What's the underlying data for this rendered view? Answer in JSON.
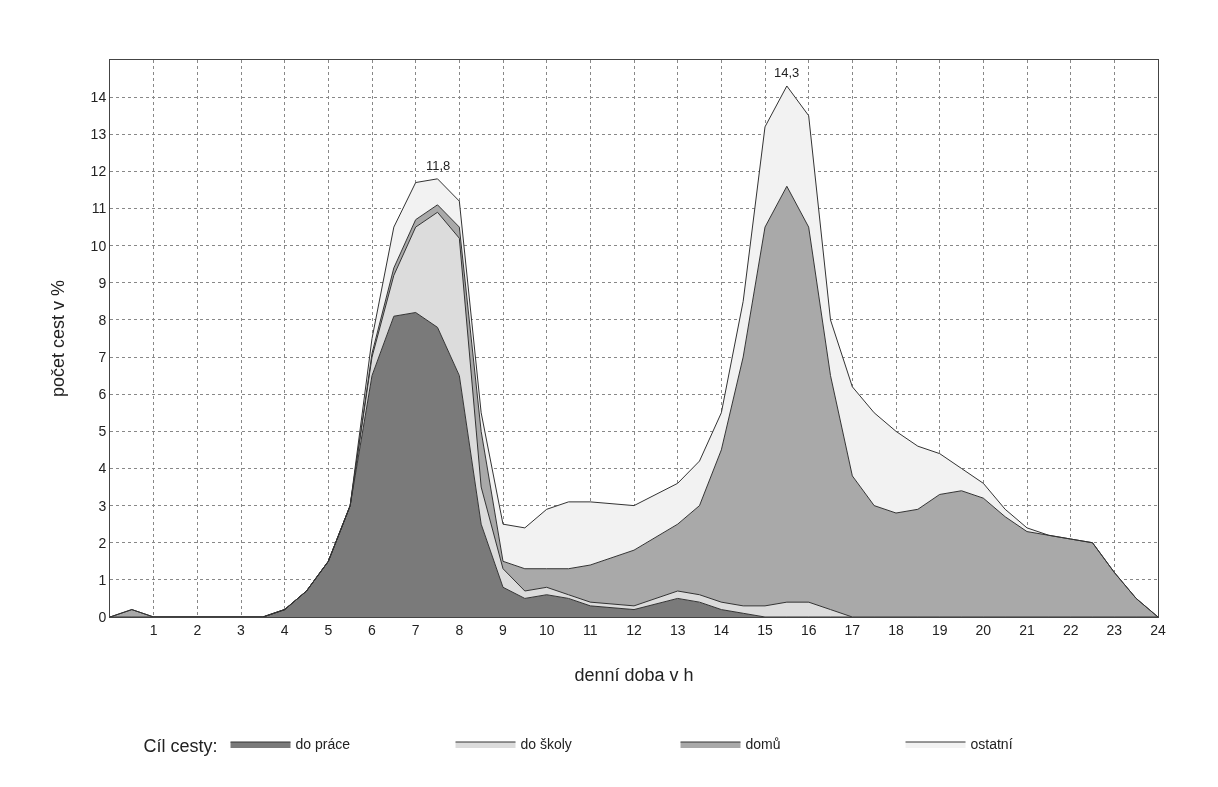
{
  "chart_data": {
    "type": "area",
    "stacked": true,
    "xlabel": "denní doba v h",
    "ylabel": "počet cest v %",
    "legend_title": "Cíl cesty:",
    "x": [
      0,
      0.5,
      1,
      3.5,
      4,
      4.5,
      5,
      5.5,
      6,
      6.5,
      7,
      7.5,
      8,
      8.5,
      9,
      9.5,
      10,
      10.5,
      11,
      12,
      13,
      13.5,
      14,
      14.5,
      15,
      15.5,
      16,
      16.5,
      17,
      17.5,
      18,
      18.5,
      19,
      19.5,
      20,
      20.5,
      21,
      21.5,
      22,
      22.5,
      23,
      23.5,
      24
    ],
    "series": [
      {
        "name": "do práce",
        "color": "#7a7a7a",
        "values": [
          0,
          0,
          0,
          0,
          0.2,
          0.7,
          1.5,
          3.0,
          6.5,
          8.1,
          8.2,
          7.8,
          6.5,
          2.5,
          0.8,
          0.5,
          0.6,
          0.5,
          0.3,
          0.2,
          0.5,
          0.4,
          0.2,
          0.1,
          0,
          0,
          0,
          0,
          0,
          0,
          0,
          0,
          0,
          0,
          0,
          0,
          0,
          0,
          0,
          0,
          0,
          0,
          0
        ]
      },
      {
        "name": "do školy",
        "color": "#dcdcdc",
        "values": [
          0,
          0,
          0,
          0,
          0,
          0,
          0,
          0,
          0.5,
          1.1,
          2.3,
          3.1,
          3.7,
          1.0,
          0.5,
          0.2,
          0.2,
          0.1,
          0.1,
          0.1,
          0.2,
          0.2,
          0.2,
          0.2,
          0.3,
          0.4,
          0.4,
          0.2,
          0,
          0,
          0,
          0,
          0,
          0,
          0,
          0,
          0,
          0,
          0,
          0,
          0,
          0,
          0
        ]
      },
      {
        "name": "domů",
        "color": "#a9a9a9",
        "values": [
          0,
          0.2,
          0,
          0,
          0,
          0,
          0,
          0,
          0.1,
          0.2,
          0.2,
          0.2,
          0.3,
          1.5,
          0.2,
          0.6,
          0.5,
          0.7,
          1.0,
          1.5,
          1.8,
          2.4,
          4.1,
          6.7,
          10.2,
          11.2,
          10.1,
          6.3,
          3.8,
          3.0,
          2.8,
          2.9,
          3.3,
          3.4,
          3.2,
          2.7,
          2.3,
          2.2,
          2.1,
          2.0,
          1.2,
          0.5,
          0
        ]
      },
      {
        "name": "ostatní",
        "color": "#f2f2f2",
        "values": [
          0,
          0,
          0,
          0,
          0,
          0,
          0,
          0,
          0.4,
          1.1,
          1.0,
          0.7,
          0.7,
          0.5,
          1.0,
          1.1,
          1.6,
          1.8,
          1.7,
          1.2,
          1.1,
          1.2,
          1.0,
          1.5,
          2.7,
          2.7,
          3.0,
          1.5,
          2.4,
          2.5,
          2.2,
          1.7,
          1.1,
          0.6,
          0.4,
          0.2,
          0.1,
          0,
          0,
          0,
          0,
          0,
          0
        ]
      }
    ],
    "xlim": [
      0,
      24
    ],
    "xticks": [
      1,
      2,
      3,
      4,
      5,
      6,
      7,
      8,
      9,
      10,
      11,
      12,
      13,
      14,
      15,
      16,
      17,
      18,
      19,
      20,
      21,
      22,
      23,
      24
    ],
    "ylim": [
      0,
      15
    ],
    "yticks": [
      0,
      1,
      2,
      3,
      4,
      5,
      6,
      7,
      8,
      9,
      10,
      11,
      12,
      13,
      14
    ],
    "annotations": [
      {
        "text": "11,8",
        "x": 7.5,
        "y": 11.8
      },
      {
        "text": "14,3",
        "x": 15.5,
        "y": 14.3
      }
    ],
    "grid": true,
    "legend": "bottom",
    "marker": "none",
    "line_style": "solid"
  }
}
